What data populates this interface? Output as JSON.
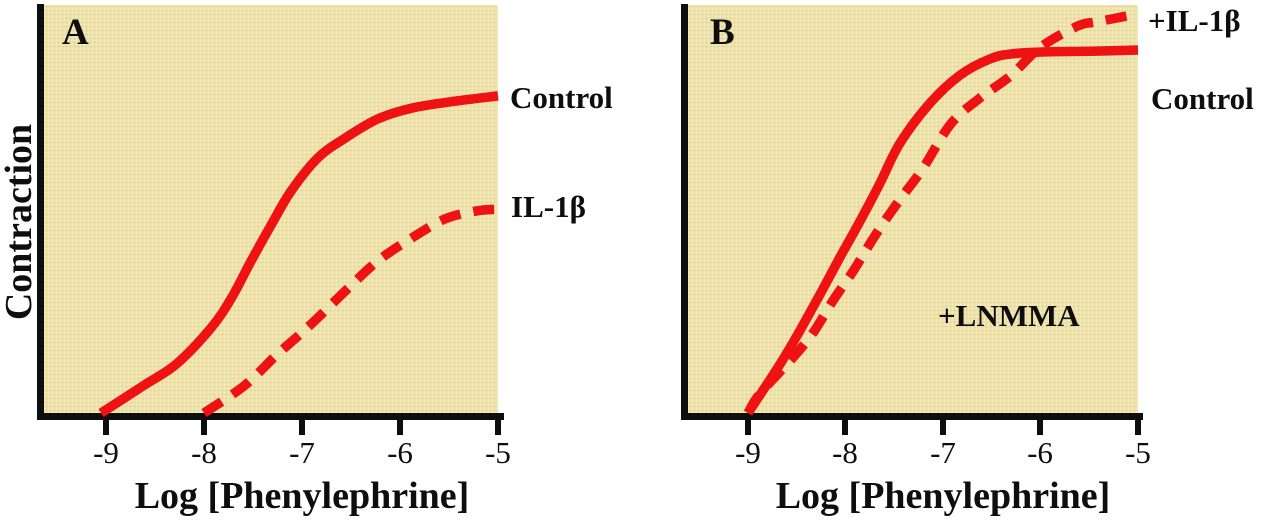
{
  "colors": {
    "curve_red": "#ee1212",
    "plot_bg": "#f2e5a9",
    "axis": "#0e0e0e",
    "text": "#0e0e0e",
    "outer_bg": "#ffffff"
  },
  "panels": [
    {
      "label": "A",
      "ylabel": "Contraction",
      "xlabel": "Log [Phenylephrine]",
      "x_ticks": [
        "-9",
        "-8",
        "-7",
        "-6",
        "-5"
      ],
      "curve_labels": {
        "solid": "Control",
        "dashed": "IL-1β"
      }
    },
    {
      "label": "B",
      "xlabel": "Log [Phenylephrine]",
      "x_ticks": [
        "-9",
        "-8",
        "-7",
        "-6",
        "-5"
      ],
      "curve_labels": {
        "dashed": "+IL-1β",
        "solid": "Control"
      },
      "annotation": "+LNMMA"
    }
  ],
  "chart_data": [
    {
      "type": "line",
      "panel": "A",
      "xlabel": "Log [Phenylephrine]",
      "ylabel": "Contraction",
      "xlim": [
        -9.6,
        -5
      ],
      "ylim": [
        0,
        1
      ],
      "grid": false,
      "y_axis_note": "y axis unlabeled; values are relative contraction (fraction of panel height)",
      "series": [
        {
          "name": "Control",
          "line_style": "solid",
          "color": "#ee1212",
          "points": [
            [
              -9.05,
              0.0
            ],
            [
              -8.62,
              0.067
            ],
            [
              -8.28,
              0.121
            ],
            [
              -7.93,
              0.209
            ],
            [
              -7.72,
              0.283
            ],
            [
              -7.52,
              0.374
            ],
            [
              -7.31,
              0.465
            ],
            [
              -7.11,
              0.547
            ],
            [
              -6.84,
              0.628
            ],
            [
              -6.56,
              0.677
            ],
            [
              -6.23,
              0.724
            ],
            [
              -5.88,
              0.751
            ],
            [
              -5.44,
              0.768
            ],
            [
              -5.0,
              0.781
            ]
          ]
        },
        {
          "name": "IL-1β",
          "line_style": "dashed",
          "color": "#ee1212",
          "points": [
            [
              -8.0,
              0.0
            ],
            [
              -7.59,
              0.067
            ],
            [
              -7.25,
              0.145
            ],
            [
              -6.95,
              0.209
            ],
            [
              -6.56,
              0.3
            ],
            [
              -6.23,
              0.374
            ],
            [
              -5.88,
              0.431
            ],
            [
              -5.54,
              0.478
            ],
            [
              -5.21,
              0.498
            ],
            [
              -5.0,
              0.502
            ]
          ]
        }
      ]
    },
    {
      "type": "line",
      "panel": "B",
      "xlabel": "Log [Phenylephrine]",
      "ylabel": "Contraction",
      "xlim": [
        -9.6,
        -5
      ],
      "ylim": [
        0,
        1
      ],
      "grid": false,
      "annotation": "+LNMMA",
      "y_axis_note": "y axis unlabeled; values are relative contraction (fraction of panel height)",
      "series": [
        {
          "name": "Control",
          "line_style": "solid",
          "color": "#ee1212",
          "points": [
            [
              -9.0,
              0.0
            ],
            [
              -8.67,
              0.121
            ],
            [
              -8.47,
              0.202
            ],
            [
              -8.26,
              0.293
            ],
            [
              -8.06,
              0.382
            ],
            [
              -7.85,
              0.473
            ],
            [
              -7.65,
              0.564
            ],
            [
              -7.44,
              0.665
            ],
            [
              -7.13,
              0.764
            ],
            [
              -6.82,
              0.833
            ],
            [
              -6.52,
              0.872
            ],
            [
              -6.31,
              0.884
            ],
            [
              -6.01,
              0.889
            ],
            [
              -5.49,
              0.891
            ],
            [
              -5.0,
              0.894
            ]
          ]
        },
        {
          "name": "+IL-1β",
          "line_style": "dashed",
          "color": "#ee1212",
          "points": [
            [
              -9.0,
              0.0
            ],
            [
              -8.88,
              0.047
            ],
            [
              -8.57,
              0.128
            ],
            [
              -8.34,
              0.195
            ],
            [
              -8.13,
              0.276
            ],
            [
              -7.92,
              0.35
            ],
            [
              -7.7,
              0.436
            ],
            [
              -7.46,
              0.52
            ],
            [
              -7.21,
              0.601
            ],
            [
              -6.92,
              0.712
            ],
            [
              -6.62,
              0.776
            ],
            [
              -6.31,
              0.83
            ],
            [
              -6.0,
              0.901
            ],
            [
              -5.62,
              0.953
            ],
            [
              -5.43,
              0.963
            ],
            [
              -5.11,
              0.978
            ],
            [
              -5.0,
              0.983
            ]
          ]
        }
      ]
    }
  ]
}
